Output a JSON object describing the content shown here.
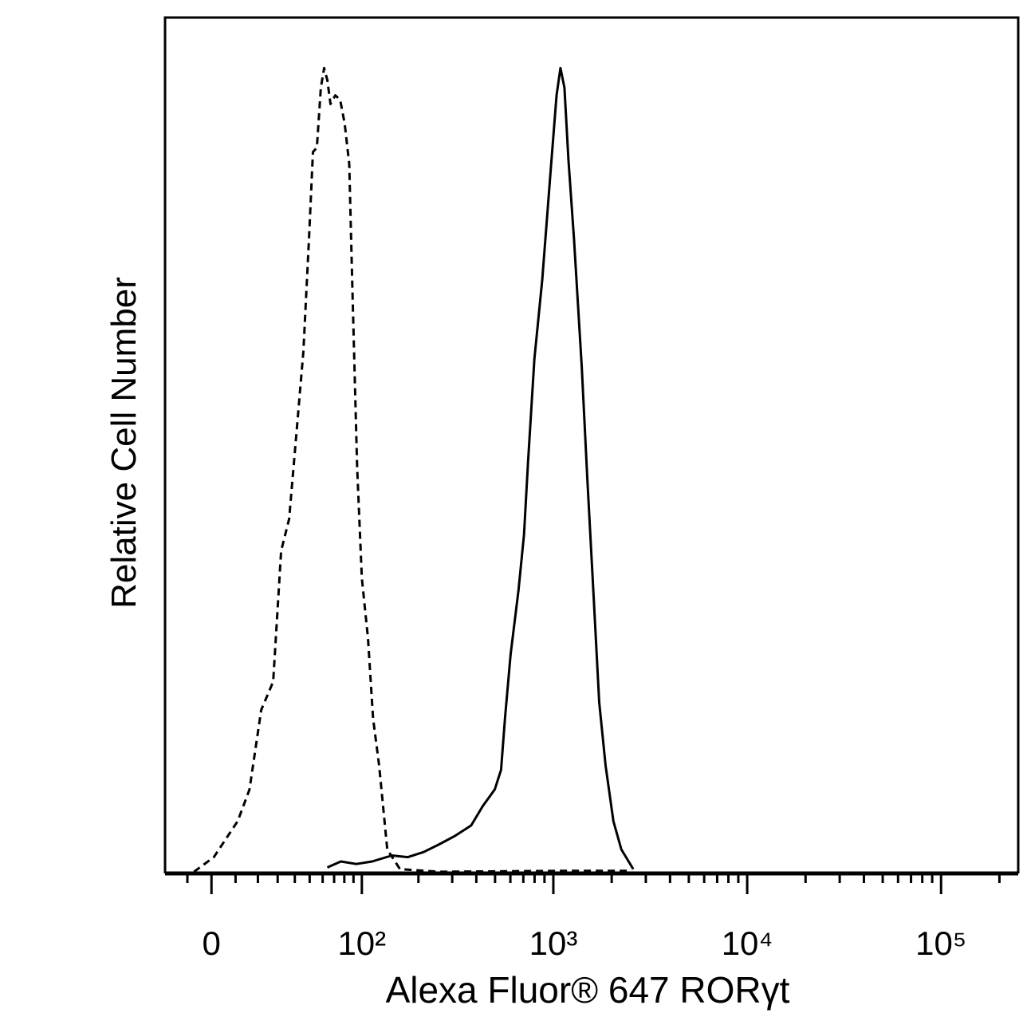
{
  "chart_data": {
    "type": "line",
    "xlabel": "Alexa Fluor® 647  RORγt",
    "ylabel": "Relative Cell Number",
    "xscale": "asinh",
    "xlim": [
      -20,
      250000
    ],
    "ylim": [
      0,
      100
    ],
    "xticks": [
      0,
      {
        "value": 100,
        "label": "10²"
      },
      {
        "value": 1000,
        "label": "10³"
      },
      {
        "value": 10000,
        "label": "10⁴"
      },
      {
        "value": 100000,
        "label": "10⁵"
      }
    ],
    "xminorticks": [
      -10,
      10,
      20,
      30,
      40,
      50,
      60,
      70,
      80,
      90,
      200,
      300,
      400,
      500,
      600,
      700,
      800,
      900,
      2000,
      3000,
      4000,
      5000,
      6000,
      7000,
      8000,
      9000,
      20000,
      30000,
      40000,
      50000,
      60000,
      70000,
      80000,
      90000,
      200000
    ],
    "series": [
      {
        "color": "#000000",
        "style": "dashed",
        "x": [
          -7.2,
          0.97,
          10.9,
          16.1,
          21.6,
          27.6,
          31.9,
          36.5,
          41.4,
          45.6,
          49.5,
          52.4,
          55.4,
          58.5,
          61.2,
          63.9,
          66.7,
          71.1,
          75.8,
          80.4,
          85.2,
          88.7,
          94.2,
          100,
          108,
          115,
          124,
          137,
          160,
          257,
          1059,
          2467
        ],
        "values": [
          0.2,
          1.9,
          6.1,
          9.8,
          19.1,
          22.4,
          37.7,
          41.4,
          52.2,
          61.0,
          74.1,
          84.3,
          84.8,
          91.8,
          94.1,
          92.7,
          89.9,
          90.9,
          90.4,
          87.6,
          82.9,
          68.5,
          47.5,
          34.5,
          27.5,
          18.1,
          12.6,
          2.8,
          0.5,
          0.2,
          0.3,
          0.3
        ]
      },
      {
        "color": "#000000",
        "style": "solid",
        "x": [
          63.9,
          76.5,
          93.3,
          113.8,
          145,
          176,
          213,
          257,
          311,
          376,
          433,
          498,
          537,
          563,
          602,
          661,
          706,
          740,
          798,
          877,
          964,
          1039,
          1088,
          1141,
          1196,
          1278,
          1402,
          1497,
          1615,
          1725,
          1860,
          2042,
          2243,
          2584
        ],
        "values": [
          0.7,
          1.4,
          1.1,
          1.4,
          2.1,
          1.9,
          2.5,
          3.4,
          4.4,
          5.6,
          7.9,
          9.8,
          12.1,
          18.2,
          25.6,
          33.1,
          39.6,
          48.0,
          60.1,
          69.4,
          81.5,
          90.9,
          94.1,
          91.8,
          83.4,
          74.1,
          59.2,
          46.1,
          32.2,
          20.0,
          12.6,
          6.1,
          2.8,
          0.5
        ]
      }
    ]
  }
}
